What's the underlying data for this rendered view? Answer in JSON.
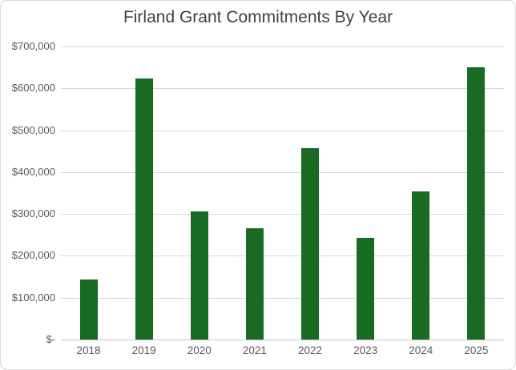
{
  "window": {
    "background": "#FFFFFF",
    "border_color": "#D9D9D9"
  },
  "chart_data": {
    "type": "bar",
    "title": "Firland Grant Commitments By Year",
    "categories": [
      "2018",
      "2019",
      "2020",
      "2021",
      "2022",
      "2023",
      "2024",
      "2025"
    ],
    "values": [
      143000,
      623000,
      307000,
      266000,
      457000,
      243000,
      353000,
      650000
    ],
    "xlabel": "",
    "ylabel": "",
    "ylim": [
      0,
      700000
    ],
    "y_tick_step": 100000,
    "y_tick_labels": [
      "$700,000",
      "$600,000",
      "$500,000",
      "$400,000",
      "$300,000",
      "$200,000",
      "$100,000",
      "$-"
    ],
    "grid": true,
    "legend": false,
    "bar_color": "#196B24",
    "gridline_color": "#D9D9D9",
    "axis_line_color": "#C6C6C6",
    "title_color": "#404040",
    "tick_label_color": "#595959"
  }
}
